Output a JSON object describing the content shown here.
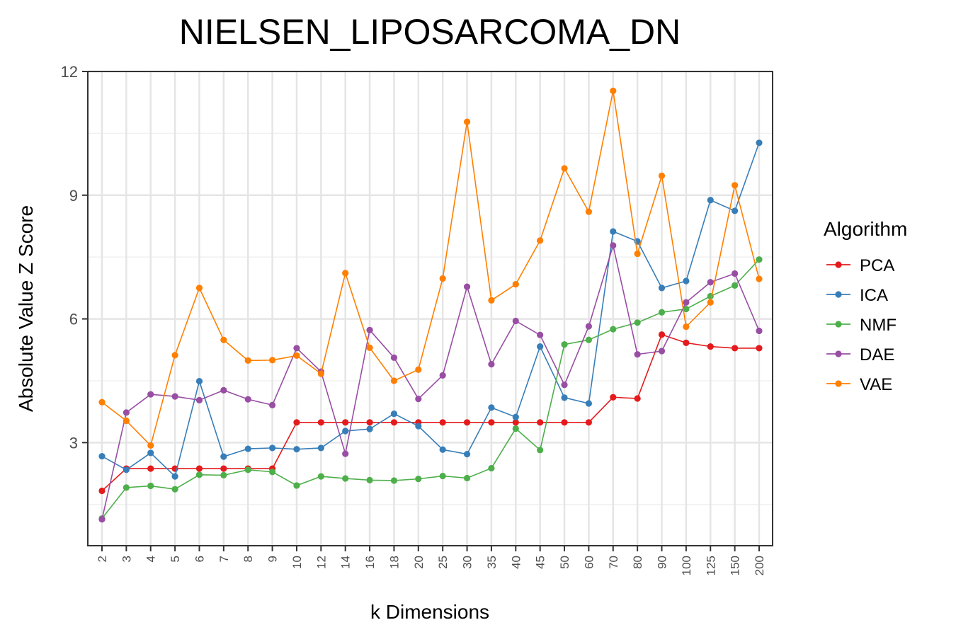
{
  "chart_data": {
    "type": "line",
    "title": "NIELSEN_LIPOSARCOMA_DN",
    "xlabel": "k Dimensions",
    "ylabel": "Absolute Value Z Score",
    "categories": [
      "2",
      "3",
      "4",
      "5",
      "6",
      "7",
      "8",
      "9",
      "10",
      "12",
      "14",
      "16",
      "18",
      "20",
      "25",
      "30",
      "35",
      "40",
      "45",
      "50",
      "60",
      "70",
      "80",
      "90",
      "100",
      "125",
      "150",
      "200"
    ],
    "ylim": [
      0.5,
      12
    ],
    "yticks": [
      3,
      6,
      9,
      12
    ],
    "grid": true,
    "legend_title": "Algorithm",
    "legend_position": "right",
    "series": [
      {
        "name": "PCA",
        "color": "#e41a1c",
        "values": [
          1.83,
          2.37,
          2.37,
          2.37,
          2.37,
          2.37,
          2.37,
          2.37,
          3.49,
          3.49,
          3.49,
          3.49,
          3.49,
          3.49,
          3.49,
          3.49,
          3.49,
          3.49,
          3.49,
          3.49,
          3.49,
          4.1,
          4.07,
          5.62,
          5.42,
          5.33,
          5.29,
          5.29
        ]
      },
      {
        "name": "ICA",
        "color": "#377eb8",
        "values": [
          2.67,
          2.34,
          2.75,
          2.18,
          4.49,
          2.66,
          2.85,
          2.87,
          2.84,
          2.87,
          3.28,
          3.33,
          3.7,
          3.4,
          2.83,
          2.72,
          3.85,
          3.62,
          5.33,
          4.09,
          3.95,
          8.12,
          7.88,
          6.75,
          6.92,
          8.88,
          8.62,
          10.27
        ]
      },
      {
        "name": "NMF",
        "color": "#4daf4a",
        "values": [
          1.16,
          1.91,
          1.95,
          1.87,
          2.22,
          2.21,
          2.34,
          2.29,
          1.96,
          2.18,
          2.13,
          2.09,
          2.08,
          2.12,
          2.19,
          2.14,
          2.38,
          3.34,
          2.82,
          5.38,
          5.49,
          5.75,
          5.91,
          6.16,
          6.24,
          6.55,
          6.81,
          7.44
        ]
      },
      {
        "name": "DAE",
        "color": "#984ea3",
        "values": [
          1.14,
          3.73,
          4.17,
          4.12,
          4.03,
          4.27,
          4.05,
          3.91,
          5.29,
          4.72,
          2.73,
          5.73,
          5.06,
          4.06,
          4.63,
          6.78,
          4.9,
          5.95,
          5.61,
          4.4,
          5.82,
          7.78,
          5.14,
          5.22,
          6.4,
          6.89,
          7.1,
          5.71
        ]
      },
      {
        "name": "VAE",
        "color": "#ff7f00",
        "values": [
          3.98,
          3.53,
          2.93,
          5.12,
          6.75,
          5.49,
          4.99,
          5.0,
          5.11,
          4.67,
          7.11,
          5.3,
          4.5,
          4.77,
          6.98,
          10.78,
          6.45,
          6.84,
          7.9,
          9.65,
          8.6,
          11.53,
          7.58,
          9.47,
          5.81,
          6.4,
          9.24,
          6.97
        ]
      }
    ]
  }
}
